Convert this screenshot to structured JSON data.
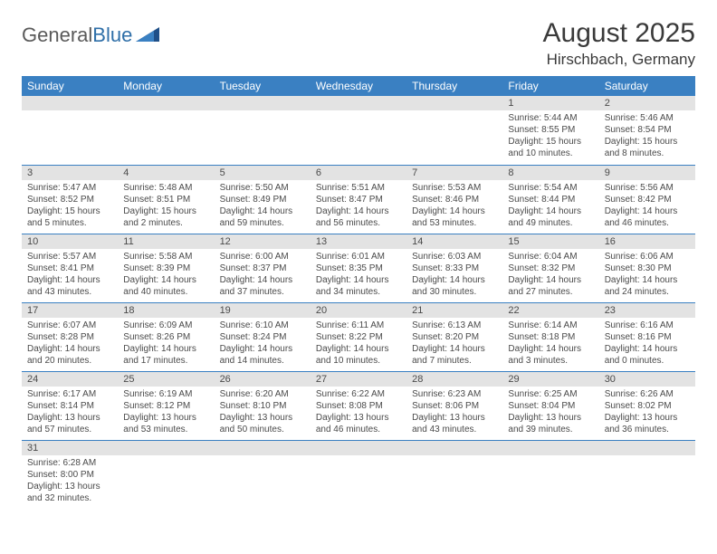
{
  "logo": {
    "text1": "General",
    "text2": "Blue"
  },
  "title": "August 2025",
  "location": "Hirschbach, Germany",
  "colors": {
    "header_bg": "#3a80c2",
    "header_fg": "#ffffff",
    "daynum_bg": "#e3e3e3",
    "rule": "#3a80c2",
    "logo_gray": "#5a5a5a",
    "logo_blue": "#2f6fa8",
    "triangle": "#1f4f88"
  },
  "weekdays": [
    "Sunday",
    "Monday",
    "Tuesday",
    "Wednesday",
    "Thursday",
    "Friday",
    "Saturday"
  ],
  "weeks": [
    [
      {
        "n": "",
        "sr": "",
        "ss": "",
        "dl": ""
      },
      {
        "n": "",
        "sr": "",
        "ss": "",
        "dl": ""
      },
      {
        "n": "",
        "sr": "",
        "ss": "",
        "dl": ""
      },
      {
        "n": "",
        "sr": "",
        "ss": "",
        "dl": ""
      },
      {
        "n": "",
        "sr": "",
        "ss": "",
        "dl": ""
      },
      {
        "n": "1",
        "sr": "Sunrise: 5:44 AM",
        "ss": "Sunset: 8:55 PM",
        "dl": "Daylight: 15 hours and 10 minutes."
      },
      {
        "n": "2",
        "sr": "Sunrise: 5:46 AM",
        "ss": "Sunset: 8:54 PM",
        "dl": "Daylight: 15 hours and 8 minutes."
      }
    ],
    [
      {
        "n": "3",
        "sr": "Sunrise: 5:47 AM",
        "ss": "Sunset: 8:52 PM",
        "dl": "Daylight: 15 hours and 5 minutes."
      },
      {
        "n": "4",
        "sr": "Sunrise: 5:48 AM",
        "ss": "Sunset: 8:51 PM",
        "dl": "Daylight: 15 hours and 2 minutes."
      },
      {
        "n": "5",
        "sr": "Sunrise: 5:50 AM",
        "ss": "Sunset: 8:49 PM",
        "dl": "Daylight: 14 hours and 59 minutes."
      },
      {
        "n": "6",
        "sr": "Sunrise: 5:51 AM",
        "ss": "Sunset: 8:47 PM",
        "dl": "Daylight: 14 hours and 56 minutes."
      },
      {
        "n": "7",
        "sr": "Sunrise: 5:53 AM",
        "ss": "Sunset: 8:46 PM",
        "dl": "Daylight: 14 hours and 53 minutes."
      },
      {
        "n": "8",
        "sr": "Sunrise: 5:54 AM",
        "ss": "Sunset: 8:44 PM",
        "dl": "Daylight: 14 hours and 49 minutes."
      },
      {
        "n": "9",
        "sr": "Sunrise: 5:56 AM",
        "ss": "Sunset: 8:42 PM",
        "dl": "Daylight: 14 hours and 46 minutes."
      }
    ],
    [
      {
        "n": "10",
        "sr": "Sunrise: 5:57 AM",
        "ss": "Sunset: 8:41 PM",
        "dl": "Daylight: 14 hours and 43 minutes."
      },
      {
        "n": "11",
        "sr": "Sunrise: 5:58 AM",
        "ss": "Sunset: 8:39 PM",
        "dl": "Daylight: 14 hours and 40 minutes."
      },
      {
        "n": "12",
        "sr": "Sunrise: 6:00 AM",
        "ss": "Sunset: 8:37 PM",
        "dl": "Daylight: 14 hours and 37 minutes."
      },
      {
        "n": "13",
        "sr": "Sunrise: 6:01 AM",
        "ss": "Sunset: 8:35 PM",
        "dl": "Daylight: 14 hours and 34 minutes."
      },
      {
        "n": "14",
        "sr": "Sunrise: 6:03 AM",
        "ss": "Sunset: 8:33 PM",
        "dl": "Daylight: 14 hours and 30 minutes."
      },
      {
        "n": "15",
        "sr": "Sunrise: 6:04 AM",
        "ss": "Sunset: 8:32 PM",
        "dl": "Daylight: 14 hours and 27 minutes."
      },
      {
        "n": "16",
        "sr": "Sunrise: 6:06 AM",
        "ss": "Sunset: 8:30 PM",
        "dl": "Daylight: 14 hours and 24 minutes."
      }
    ],
    [
      {
        "n": "17",
        "sr": "Sunrise: 6:07 AM",
        "ss": "Sunset: 8:28 PM",
        "dl": "Daylight: 14 hours and 20 minutes."
      },
      {
        "n": "18",
        "sr": "Sunrise: 6:09 AM",
        "ss": "Sunset: 8:26 PM",
        "dl": "Daylight: 14 hours and 17 minutes."
      },
      {
        "n": "19",
        "sr": "Sunrise: 6:10 AM",
        "ss": "Sunset: 8:24 PM",
        "dl": "Daylight: 14 hours and 14 minutes."
      },
      {
        "n": "20",
        "sr": "Sunrise: 6:11 AM",
        "ss": "Sunset: 8:22 PM",
        "dl": "Daylight: 14 hours and 10 minutes."
      },
      {
        "n": "21",
        "sr": "Sunrise: 6:13 AM",
        "ss": "Sunset: 8:20 PM",
        "dl": "Daylight: 14 hours and 7 minutes."
      },
      {
        "n": "22",
        "sr": "Sunrise: 6:14 AM",
        "ss": "Sunset: 8:18 PM",
        "dl": "Daylight: 14 hours and 3 minutes."
      },
      {
        "n": "23",
        "sr": "Sunrise: 6:16 AM",
        "ss": "Sunset: 8:16 PM",
        "dl": "Daylight: 14 hours and 0 minutes."
      }
    ],
    [
      {
        "n": "24",
        "sr": "Sunrise: 6:17 AM",
        "ss": "Sunset: 8:14 PM",
        "dl": "Daylight: 13 hours and 57 minutes."
      },
      {
        "n": "25",
        "sr": "Sunrise: 6:19 AM",
        "ss": "Sunset: 8:12 PM",
        "dl": "Daylight: 13 hours and 53 minutes."
      },
      {
        "n": "26",
        "sr": "Sunrise: 6:20 AM",
        "ss": "Sunset: 8:10 PM",
        "dl": "Daylight: 13 hours and 50 minutes."
      },
      {
        "n": "27",
        "sr": "Sunrise: 6:22 AM",
        "ss": "Sunset: 8:08 PM",
        "dl": "Daylight: 13 hours and 46 minutes."
      },
      {
        "n": "28",
        "sr": "Sunrise: 6:23 AM",
        "ss": "Sunset: 8:06 PM",
        "dl": "Daylight: 13 hours and 43 minutes."
      },
      {
        "n": "29",
        "sr": "Sunrise: 6:25 AM",
        "ss": "Sunset: 8:04 PM",
        "dl": "Daylight: 13 hours and 39 minutes."
      },
      {
        "n": "30",
        "sr": "Sunrise: 6:26 AM",
        "ss": "Sunset: 8:02 PM",
        "dl": "Daylight: 13 hours and 36 minutes."
      }
    ],
    [
      {
        "n": "31",
        "sr": "Sunrise: 6:28 AM",
        "ss": "Sunset: 8:00 PM",
        "dl": "Daylight: 13 hours and 32 minutes."
      },
      {
        "n": "",
        "sr": "",
        "ss": "",
        "dl": ""
      },
      {
        "n": "",
        "sr": "",
        "ss": "",
        "dl": ""
      },
      {
        "n": "",
        "sr": "",
        "ss": "",
        "dl": ""
      },
      {
        "n": "",
        "sr": "",
        "ss": "",
        "dl": ""
      },
      {
        "n": "",
        "sr": "",
        "ss": "",
        "dl": ""
      },
      {
        "n": "",
        "sr": "",
        "ss": "",
        "dl": ""
      }
    ]
  ]
}
